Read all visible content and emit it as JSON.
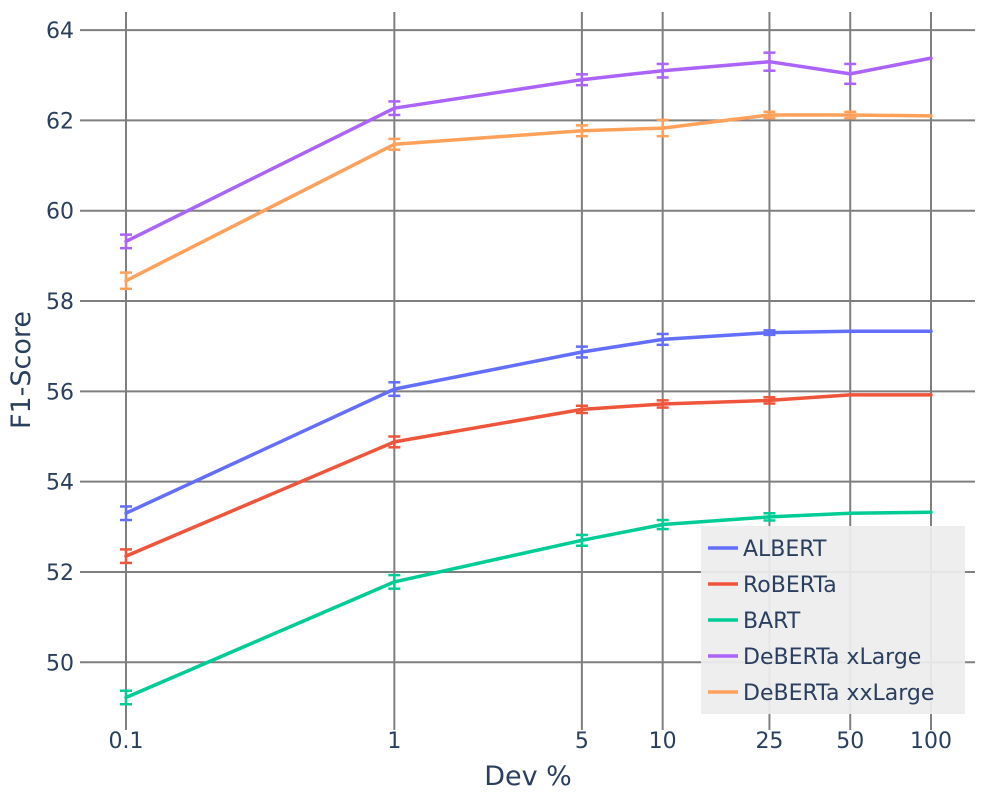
{
  "chart_data": {
    "type": "line",
    "xlabel": "Dev %",
    "ylabel": "F1-Score",
    "x_scale": "log",
    "x": [
      0.1,
      1,
      5,
      10,
      25,
      50,
      100
    ],
    "x_tick_labels": [
      "0.1",
      "1",
      "5",
      "10",
      "25",
      "50",
      "100"
    ],
    "ylim": [
      48.5,
      64.4
    ],
    "y_ticks": [
      50,
      52,
      54,
      56,
      58,
      60,
      62,
      64
    ],
    "y_tick_labels": [
      "50",
      "52",
      "54",
      "56",
      "58",
      "60",
      "62",
      "64"
    ],
    "grid": true,
    "legend_position": "bottom-right",
    "series": [
      {
        "name": "ALBERT",
        "color": "#636efa",
        "values": [
          53.3,
          56.05,
          56.87,
          57.15,
          57.3,
          57.33,
          57.33
        ],
        "errors": [
          0.15,
          0.15,
          0.12,
          0.12,
          0.05,
          0.0,
          0.0
        ]
      },
      {
        "name": "RoBERTa",
        "color": "#ef553b",
        "values": [
          52.35,
          54.88,
          55.6,
          55.72,
          55.8,
          55.92,
          55.92
        ],
        "errors": [
          0.15,
          0.12,
          0.08,
          0.08,
          0.07,
          0.0,
          0.0
        ]
      },
      {
        "name": "BART",
        "color": "#00cc96",
        "values": [
          49.22,
          51.78,
          52.7,
          53.05,
          53.22,
          53.3,
          53.32
        ],
        "errors": [
          0.15,
          0.15,
          0.12,
          0.1,
          0.08,
          0.0,
          0.0
        ]
      },
      {
        "name": "DeBERTa xLarge",
        "color": "#ab63fa",
        "values": [
          59.32,
          62.27,
          62.9,
          63.1,
          63.3,
          63.03,
          63.38
        ],
        "errors": [
          0.15,
          0.15,
          0.12,
          0.15,
          0.2,
          0.22,
          0.0
        ]
      },
      {
        "name": "DeBERTa xxLarge",
        "color": "#ffa15a",
        "values": [
          58.45,
          61.47,
          61.77,
          61.83,
          62.12,
          62.12,
          62.1
        ],
        "errors": [
          0.18,
          0.12,
          0.12,
          0.18,
          0.07,
          0.07,
          0.0
        ]
      }
    ]
  }
}
